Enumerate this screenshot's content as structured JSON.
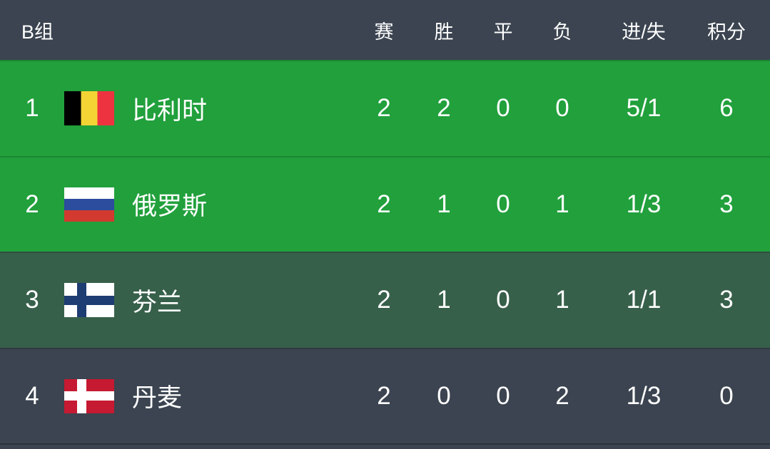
{
  "table": {
    "group_label": "B组",
    "columns": [
      "赛",
      "胜",
      "平",
      "负",
      "进/失",
      "积分"
    ],
    "rows": [
      {
        "rank": "1",
        "flag": "belgium",
        "team": "比利时",
        "played": "2",
        "won": "2",
        "drawn": "0",
        "lost": "0",
        "goals": "5/1",
        "points": "6",
        "row_style": "green"
      },
      {
        "rank": "2",
        "flag": "russia",
        "team": "俄罗斯",
        "played": "2",
        "won": "1",
        "drawn": "0",
        "lost": "1",
        "goals": "1/3",
        "points": "3",
        "row_style": "green"
      },
      {
        "rank": "3",
        "flag": "finland",
        "team": "芬兰",
        "played": "2",
        "won": "1",
        "drawn": "0",
        "lost": "1",
        "goals": "1/1",
        "points": "3",
        "row_style": "dark-green"
      },
      {
        "rank": "4",
        "flag": "denmark",
        "team": "丹麦",
        "played": "2",
        "won": "0",
        "drawn": "0",
        "lost": "2",
        "goals": "1/3",
        "points": "0",
        "row_style": "slate"
      }
    ]
  },
  "colors": {
    "header_bg": "#3B4450",
    "green_row_bg": "#21A03C",
    "dark_green_row_bg": "#37604A",
    "slate_row_bg": "#3B4450",
    "bottom_divider": "#2B333D",
    "text": "#FFFFFF"
  },
  "flags": {
    "belgium": {
      "type": "vertical",
      "colors": [
        "#000000",
        "#F4D335",
        "#EE3340"
      ]
    },
    "russia": {
      "type": "horizontal",
      "colors": [
        "#FFFFFF",
        "#2C4C9E",
        "#D23A2F"
      ]
    },
    "finland": {
      "type": "cross",
      "bg": "#FFFFFF",
      "cross": "#1E3D72"
    },
    "denmark": {
      "type": "cross",
      "bg": "#C51A32",
      "cross": "#FFFFFF"
    }
  }
}
